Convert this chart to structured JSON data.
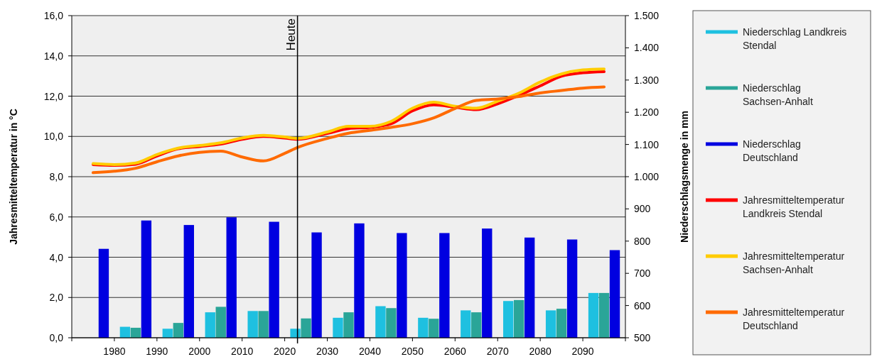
{
  "chart_data": {
    "type": "bar",
    "ylabel": "Jahresmitteltemperatur  in °C",
    "y2label": "Niederschlagsmenge  in mm",
    "xlim": [
      1970,
      2100
    ],
    "xticks": [
      {
        "value": 1970,
        "label": null
      },
      1980,
      1990,
      2000,
      2010,
      2020,
      2030,
      2040,
      2050,
      2060,
      2070,
      2080,
      2090,
      {
        "value": 2100,
        "label": null
      }
    ],
    "ylim": [
      0,
      16
    ],
    "yticks": [
      {
        "value": 0,
        "label": "0,0"
      },
      {
        "value": 2,
        "label": "2,0"
      },
      {
        "value": 4,
        "label": "4,0"
      },
      {
        "value": 6,
        "label": "6,0"
      },
      {
        "value": 8,
        "label": "8,0"
      },
      {
        "value": 10,
        "label": "10,0"
      },
      {
        "value": 12,
        "label": "12,0"
      },
      {
        "value": 14,
        "label": "14,0"
      },
      {
        "value": 16,
        "label": "16,0"
      }
    ],
    "y2lim": [
      500,
      1500
    ],
    "y2ticks": [
      500,
      600,
      700,
      800,
      900,
      {
        "value": 1000,
        "label": "1.000"
      },
      {
        "value": 1100,
        "label": "1.100"
      },
      {
        "value": 1200,
        "label": "1.200"
      },
      {
        "value": 1300,
        "label": "1.300"
      },
      {
        "value": 1400,
        "label": "1.400"
      },
      {
        "value": 1500,
        "label": "1.500"
      }
    ],
    "grid": "y",
    "legend": "right",
    "ref_lines": [
      {
        "axis": "x",
        "value": 2023,
        "label": "Heute",
        "color": "#000000"
      }
    ],
    "series": [
      {
        "name": "Niederschlag Landkreis Stendal",
        "axis": "y2",
        "color": "#1ec0e0",
        "x": [
          1982.5,
          1992.5,
          2002.5,
          2012.5,
          2022.5,
          2032.5,
          2042.5,
          2052.5,
          2062.5,
          2072.5,
          2082.5,
          2092.5
        ],
        "values": [
          534,
          528,
          579,
          583,
          528,
          562,
          598,
          562,
          585,
          614,
          585,
          639
        ]
      },
      {
        "name": "Niederschlag Sachsen-Anhalt",
        "axis": "y2",
        "color": "#2aa598",
        "x": [
          1985,
          1995,
          2005,
          2015,
          2025,
          2035,
          2045,
          2055,
          2065,
          2075,
          2085,
          2095
        ],
        "values": [
          531,
          546,
          596,
          583,
          560,
          579,
          592,
          559,
          579,
          617,
          590,
          639
        ]
      },
      {
        "name": "Niederschlag Deutschland",
        "axis": "y2",
        "color": "#0000e0",
        "x": [
          1977.5,
          1987.5,
          1997.5,
          2007.5,
          2017.5,
          2027.5,
          2037.5,
          2047.5,
          2057.5,
          2067.5,
          2077.5,
          2087.5,
          2097.5
        ],
        "values": [
          776,
          864,
          850,
          874,
          860,
          827,
          855,
          825,
          825,
          839,
          811,
          805,
          772
        ]
      },
      {
        "name": "Jahresmitteltemperatur Landkreis Stendal",
        "type": "line",
        "axis": "y",
        "color": "#ff0000",
        "x": [
          1975,
          1980,
          1985,
          1990,
          1995,
          2000,
          2005,
          2010,
          2015,
          2020,
          2023,
          2030,
          2035,
          2040,
          2045,
          2050,
          2055,
          2060,
          2065,
          2070,
          2075,
          2080,
          2085,
          2090,
          2095
        ],
        "values": [
          8.6,
          8.56,
          8.62,
          9.03,
          9.39,
          9.5,
          9.62,
          9.86,
          10.0,
          9.92,
          9.86,
          10.15,
          10.39,
          10.45,
          10.63,
          11.27,
          11.57,
          11.45,
          11.33,
          11.62,
          12.04,
          12.51,
          12.99,
          13.16,
          13.22
        ]
      },
      {
        "name": "Jahresmitteltemperatur Sachsen-Anhalt",
        "type": "line",
        "axis": "y",
        "color": "#ffcc00",
        "x": [
          1975,
          1980,
          1985,
          1990,
          1995,
          2000,
          2005,
          2010,
          2015,
          2020,
          2023,
          2030,
          2035,
          2040,
          2045,
          2050,
          2055,
          2060,
          2065,
          2070,
          2075,
          2080,
          2085,
          2090,
          2095
        ],
        "values": [
          8.65,
          8.6,
          8.68,
          9.1,
          9.42,
          9.55,
          9.68,
          9.92,
          10.05,
          9.97,
          9.9,
          10.22,
          10.5,
          10.5,
          10.75,
          11.4,
          11.7,
          11.5,
          11.4,
          11.75,
          12.15,
          12.7,
          13.1,
          13.3,
          13.35
        ]
      },
      {
        "name": "Jahresmitteltemperatur Deutschland",
        "type": "line",
        "axis": "y",
        "color": "#ff6a00",
        "x": [
          1975,
          1980,
          1985,
          1990,
          1995,
          2000,
          2005,
          2010,
          2015,
          2020,
          2023,
          2030,
          2035,
          2040,
          2045,
          2050,
          2055,
          2060,
          2065,
          2070,
          2075,
          2080,
          2085,
          2090,
          2095
        ],
        "values": [
          8.2,
          8.27,
          8.42,
          8.74,
          9.03,
          9.21,
          9.27,
          8.98,
          8.78,
          9.16,
          9.45,
          9.9,
          10.16,
          10.3,
          10.45,
          10.63,
          10.92,
          11.39,
          11.79,
          11.86,
          11.98,
          12.16,
          12.28,
          12.4,
          12.46
        ]
      }
    ]
  }
}
